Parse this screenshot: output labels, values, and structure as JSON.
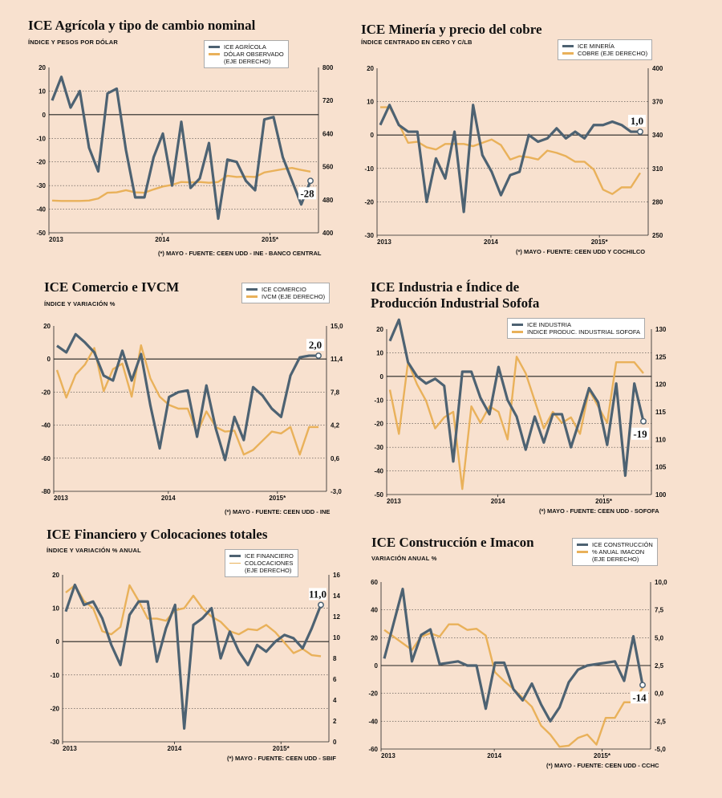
{
  "colors": {
    "primary": "#4d6272",
    "secondary": "#e9b15a",
    "background": "#f8e1cf"
  },
  "chart_data": [
    {
      "type": "line",
      "title": "ICE Agrícola y tipo de cambio nominal",
      "subtitle": "ÍNDICE Y PESOS POR DÓLAR",
      "source": "(*) MAYO - FUENTE: CEEN UDD - INE - BANCO CENTRAL",
      "x_labels": [
        "2013",
        "2014",
        "2015*"
      ],
      "left_axis": {
        "ticks": [
          "20",
          "10",
          "0",
          "-10",
          "-20",
          "-30",
          "-40",
          "-50"
        ],
        "range": [
          -50,
          20
        ]
      },
      "right_axis": {
        "ticks": [
          "800",
          "720",
          "640",
          "560",
          "480",
          "400"
        ],
        "range": [
          400,
          800
        ]
      },
      "annotation": "-28",
      "series": [
        {
          "name": "ICE AGRÍCOLA",
          "axis": "left",
          "values": [
            6,
            16,
            3,
            10,
            -14,
            -24,
            9,
            11,
            -15,
            -35,
            -35,
            -18,
            -8,
            -30,
            -3,
            -31,
            -27,
            -12,
            -44,
            -19,
            -20,
            -28,
            -32,
            -2,
            -1,
            -18,
            -28,
            -38,
            -28
          ]
        },
        {
          "name": "DÓLAR OBSERVADO\n(EJE DERECHO)",
          "axis": "right",
          "values": [
            478,
            477,
            477,
            477,
            478,
            483,
            497,
            498,
            503,
            498,
            497,
            505,
            512,
            516,
            523,
            522,
            523,
            521,
            523,
            538,
            535,
            536,
            535,
            546,
            550,
            554,
            557,
            552,
            548
          ]
        }
      ]
    },
    {
      "type": "line",
      "title": "ICE Minería y precio del cobre",
      "subtitle": "ÍNDICE CENTRADO EN CERO Y C/LB",
      "source": "(*) MAYO - FUENTE: CEEN UDD Y COCHILCO",
      "x_labels": [
        "2013",
        "2014",
        "2015*"
      ],
      "left_axis": {
        "ticks": [
          "20",
          "10",
          "0",
          "-10",
          "-20",
          "-30"
        ],
        "range": [
          -30,
          20
        ]
      },
      "right_axis": {
        "ticks": [
          "400",
          "370",
          "340",
          "310",
          "280",
          "250"
        ],
        "range": [
          250,
          400
        ]
      },
      "annotation": "1,0",
      "series": [
        {
          "name": "ICE MINERÍA",
          "axis": "left",
          "values": [
            3,
            9,
            3,
            1,
            1,
            -20,
            -7,
            -13,
            1,
            -23,
            9,
            -6,
            -11,
            -18,
            -12,
            -11,
            0,
            -2,
            -1,
            2,
            -1,
            1,
            -1,
            3,
            3,
            4,
            3,
            1,
            1
          ]
        },
        {
          "name": "COBRE (EJE DERECHO)",
          "axis": "right",
          "values": [
            365,
            365,
            350,
            333,
            334,
            329,
            327,
            332,
            332,
            332,
            330,
            333,
            336,
            331,
            318,
            321,
            320,
            318,
            326,
            324,
            321,
            316,
            316,
            309,
            291,
            287,
            293,
            293,
            306
          ]
        }
      ]
    },
    {
      "type": "line",
      "title": "ICE Comercio e IVCM",
      "subtitle": "ÍNDICE Y VARIACIÓN %",
      "source": "(*) MAYO - FUENTE: CEEN UDD - INE",
      "x_labels": [
        "2013",
        "2014",
        "2015*"
      ],
      "left_axis": {
        "ticks": [
          "20",
          "0",
          "-20",
          "-40",
          "-60",
          "-80"
        ],
        "range": [
          -80,
          20
        ]
      },
      "right_axis": {
        "ticks": [
          "15,0",
          "11,4",
          "7,8",
          "4,2",
          "0,6",
          "-3,0"
        ],
        "range": [
          -3,
          15
        ]
      },
      "annotation": "2,0",
      "series": [
        {
          "name": "ICE COMERCIO",
          "axis": "left",
          "values": [
            8,
            4,
            15,
            10,
            4,
            -10,
            -13,
            5,
            -13,
            3,
            -28,
            -54,
            -23,
            -20,
            -19,
            -47,
            -16,
            -42,
            -61,
            -35,
            -49,
            -17,
            -22,
            -30,
            -35,
            -10,
            1,
            2,
            2
          ]
        },
        {
          "name": "IVCM (EJE DERECHO)",
          "axis": "right",
          "values": [
            10.2,
            7.2,
            9.7,
            10.8,
            12.6,
            7.9,
            10.3,
            10.9,
            7.3,
            12.9,
            9.3,
            7.3,
            6.4,
            6.0,
            6.0,
            3.3,
            5.7,
            4.0,
            3.5,
            3.6,
            1.0,
            1.5,
            2.5,
            3.5,
            3.3,
            4.0,
            1.0,
            4.0,
            4.0
          ]
        }
      ]
    },
    {
      "type": "line",
      "title": "ICE Industria e Índice de\nProducción Industrial Sofofa",
      "subtitle": "",
      "source": "(*) MAYO  - FUENTE: CEEN UDD - SOFOFA",
      "x_labels": [
        "2013",
        "2014",
        "2015*"
      ],
      "left_axis": {
        "ticks": [
          "20",
          "10",
          "0",
          "-10",
          "-20",
          "-30",
          "-40",
          "-50"
        ],
        "range": [
          -50,
          20
        ]
      },
      "right_axis": {
        "ticks": [
          "130",
          "125",
          "120",
          "115",
          "110",
          "105",
          "100"
        ],
        "range": [
          100,
          130
        ]
      },
      "annotation": "-19",
      "series": [
        {
          "name": "ICE INDUSTRIA",
          "axis": "left",
          "values": [
            15,
            24,
            6,
            0,
            -3,
            -1,
            -4,
            -36,
            2,
            2,
            -9,
            -16,
            4,
            -10,
            -17,
            -31,
            -17,
            -28,
            -16,
            -16,
            -30,
            -18,
            -5,
            -11,
            -29,
            -3,
            -42,
            -3,
            -19
          ]
        },
        {
          "name": "INDICE PRODUC. INDUSTRIAL SOFOFA",
          "axis": "right",
          "values": [
            119,
            111,
            124,
            120,
            117,
            112,
            114,
            115,
            101,
            116,
            113,
            116,
            115,
            110,
            125,
            122,
            117,
            112,
            115,
            113,
            114,
            111,
            119,
            116,
            113,
            124,
            124,
            124,
            122
          ]
        }
      ]
    },
    {
      "type": "line",
      "title": "ICE Financiero y Colocaciones totales",
      "subtitle": "ÍNDICE Y VARIACIÓN % ANUAL",
      "source": "(*) MAYO  - FUENTE: CEEN UDD - SBIF",
      "x_labels": [
        "2013",
        "2014",
        "2015*"
      ],
      "left_axis": {
        "ticks": [
          "20",
          "10",
          "0",
          "-10",
          "-20",
          "-30"
        ],
        "range": [
          -30,
          20
        ]
      },
      "right_axis": {
        "ticks": [
          "16",
          "14",
          "12",
          "10",
          "8",
          "6",
          "4",
          "2",
          "0"
        ],
        "range": [
          0,
          16
        ]
      },
      "annotation": "11,0",
      "series": [
        {
          "name": "ICE FINANCIERO",
          "axis": "left",
          "values": [
            9,
            17,
            11,
            12,
            7,
            -1,
            -7,
            8,
            12,
            12,
            -6,
            4,
            11,
            -26,
            5,
            7,
            10,
            -5,
            3,
            -3,
            -7,
            -1,
            -3,
            0,
            2,
            1,
            -2,
            4,
            11
          ]
        },
        {
          "name": "COLOCACIONES\n(EJE DERECHO)",
          "axis": "right",
          "values": [
            14.3,
            15.0,
            13.5,
            12.8,
            10.6,
            10.3,
            11.0,
            15.0,
            13.5,
            11.8,
            11.8,
            11.6,
            12.6,
            12.8,
            14.0,
            12.8,
            12.0,
            11.5,
            10.6,
            10.3,
            10.8,
            10.7,
            11.2,
            10.5,
            9.5,
            8.5,
            8.9,
            8.3,
            8.2
          ]
        }
      ]
    },
    {
      "type": "line",
      "title": "ICE Construcción e Imacon",
      "subtitle": "VARIACIÓN ANUAL %",
      "source": "(*) MAYO  - FUENTE: CEEN UDD - CCHC",
      "x_labels": [
        "2013",
        "2014",
        "2015*"
      ],
      "left_axis": {
        "ticks": [
          "60",
          "40",
          "20",
          "0",
          "-20",
          "-40",
          "-60"
        ],
        "range": [
          -60,
          60
        ]
      },
      "right_axis": {
        "ticks": [
          "10,0",
          "7,5",
          "5,0",
          "2,5",
          "0,0",
          "-2,5",
          "-5,0"
        ],
        "range": [
          -5,
          10
        ]
      },
      "annotation": "-14",
      "series": [
        {
          "name": "ICE CONSTRUCCIÓN",
          "axis": "left",
          "values": [
            5,
            30,
            55,
            3,
            22,
            26,
            1,
            2,
            3,
            0,
            0,
            -31,
            2,
            2,
            -17,
            -25,
            -13,
            -28,
            -40,
            -30,
            -12,
            -3,
            0,
            1,
            2,
            3,
            -11,
            21,
            -14
          ]
        },
        {
          "name": "% ANUAL IMACON\n(EJE DERECHO)",
          "axis": "right",
          "values": [
            5.7,
            5.1,
            4.5,
            3.9,
            5.1,
            5.4,
            5.1,
            6.2,
            6.2,
            5.7,
            5.8,
            5.2,
            1.9,
            1.1,
            0.4,
            -0.4,
            -1.2,
            -2.9,
            -3.7,
            -4.8,
            -4.7,
            -4.0,
            -3.7,
            -4.6,
            -2.2,
            -2.2,
            -0.8,
            -0.8,
            0.5
          ]
        }
      ]
    }
  ]
}
